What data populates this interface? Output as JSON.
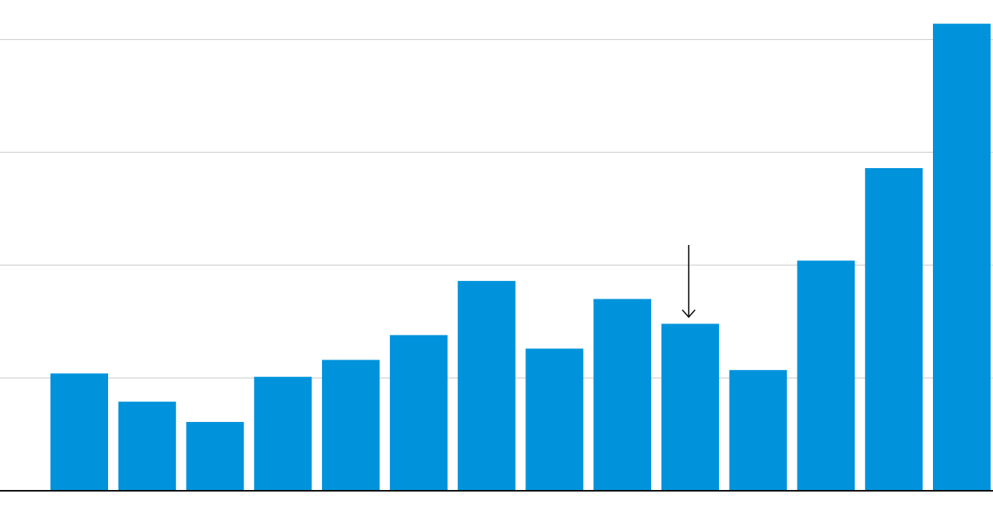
{
  "chart_data": {
    "type": "bar",
    "categories": [
      null,
      null,
      null,
      null,
      null,
      null,
      null,
      null,
      null,
      null,
      null,
      null,
      null,
      null
    ],
    "values": [
      1.04,
      0.79,
      0.61,
      1.01,
      1.16,
      1.38,
      1.86,
      1.26,
      1.7,
      1.48,
      1.07,
      2.04,
      2.86,
      4.14
    ],
    "color": "#0093dc",
    "ylim": [
      0,
      4.35
    ],
    "yticks": [
      0,
      1,
      2,
      3,
      4
    ],
    "grid": true
  }
}
